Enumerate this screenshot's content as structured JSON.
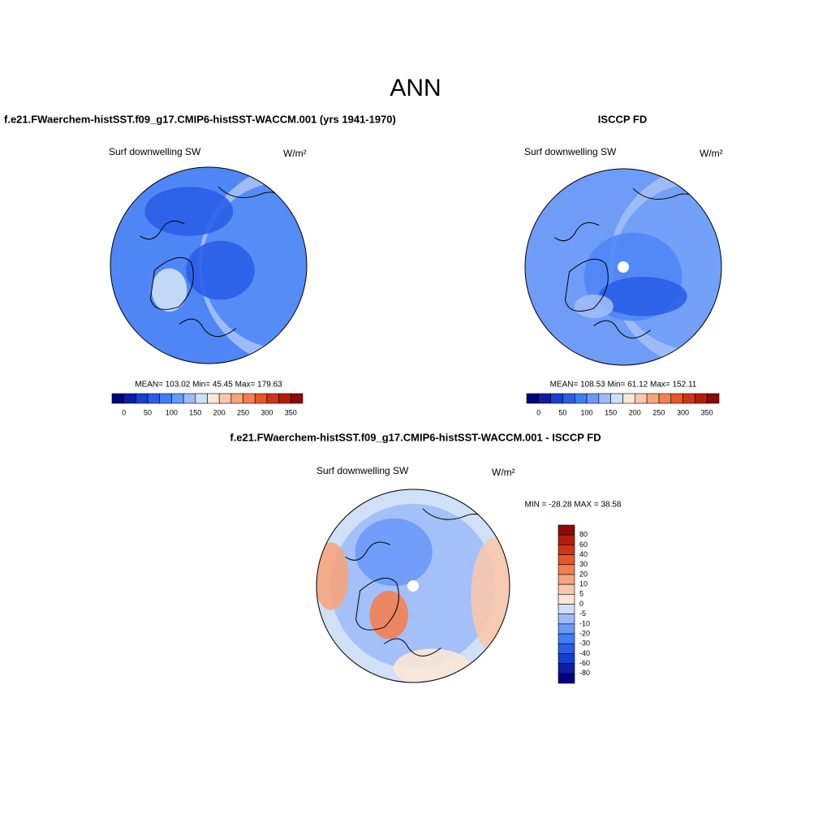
{
  "title": "ANN",
  "panels": [
    {
      "title": "f.e21.FWaerchem-histSST.f09_g17.CMIP6-histSST-WACCM.001 (yrs 1941-1970)",
      "left_label": "Surf downwelling SW",
      "units": "W/m²",
      "stats": "MEAN= 103.02  Min=  45.45  Max= 179.63",
      "colorbar": {
        "ticks": [
          0,
          50,
          100,
          150,
          200,
          250,
          300,
          350
        ],
        "colors": [
          "#000080",
          "#0a1fa3",
          "#1540d0",
          "#2a5ee8",
          "#3f7ff5",
          "#6a9af7",
          "#9dbcf7",
          "#cfe0f7",
          "#fbe7d6",
          "#f9c8ab",
          "#f6a57c",
          "#f37f51",
          "#ea5529",
          "#d23415",
          "#b31e0b",
          "#8b0a05"
        ]
      }
    },
    {
      "title": "ISCCP FD",
      "left_label": "Surf downwelling SW",
      "units": "W/m²",
      "stats": "MEAN= 108.53  Min=  61.12  Max= 152.11",
      "colorbar": {
        "ticks": [
          0,
          50,
          100,
          150,
          200,
          250,
          300,
          350
        ],
        "colors": [
          "#000080",
          "#0a1fa3",
          "#1540d0",
          "#2a5ee8",
          "#3f7ff5",
          "#6a9af7",
          "#9dbcf7",
          "#cfe0f7",
          "#fbe7d6",
          "#f9c8ab",
          "#f6a57c",
          "#f37f51",
          "#ea5529",
          "#d23415",
          "#b31e0b",
          "#8b0a05"
        ]
      }
    },
    {
      "title": "f.e21.FWaerchem-histSST.f09_g17.CMIP6-histSST-WACCM.001 - ISCCP FD",
      "left_label": "Surf downwelling SW",
      "units": "W/m²",
      "stats": "MIN = -28.28 MAX =  38.58",
      "colorbar": {
        "ticks": [
          80,
          60,
          40,
          30,
          20,
          10,
          5,
          0,
          -5,
          -10,
          -20,
          -30,
          -40,
          -60,
          -80
        ],
        "colors": [
          "#8b0a05",
          "#b31e0b",
          "#d23415",
          "#ea5529",
          "#f37f51",
          "#f6a57c",
          "#f9c8ab",
          "#fbe7d6",
          "#cfe0f7",
          "#9dbcf7",
          "#6a9af7",
          "#3f7ff5",
          "#2a5ee8",
          "#1540d0",
          "#0a1fa3",
          "#000080"
        ]
      }
    }
  ]
}
